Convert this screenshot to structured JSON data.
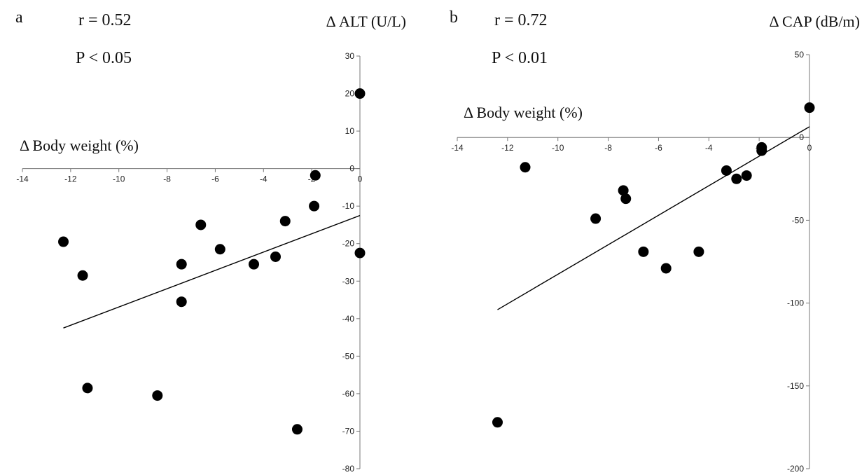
{
  "chart_data": [
    {
      "panel": "a",
      "type": "scatter",
      "stat_r": "r = 0.52",
      "stat_p": "P < 0.05",
      "xlabel": "Δ Body weight  (%)",
      "ylabel": "Δ ALT (U/L)",
      "xlim": [
        -14,
        0
      ],
      "ylim": [
        -80,
        30
      ],
      "x_ticks": [
        -14,
        -12,
        -10,
        -8,
        -6,
        -4,
        -2,
        0
      ],
      "y_ticks": [
        30,
        20,
        10,
        0,
        -10,
        -20,
        -30,
        -40,
        -50,
        -60,
        -70,
        -80
      ],
      "points": [
        {
          "x": -12.3,
          "y": -19.5
        },
        {
          "x": -11.5,
          "y": -28.5
        },
        {
          "x": -11.3,
          "y": -58.5
        },
        {
          "x": -8.4,
          "y": -60.5
        },
        {
          "x": -7.4,
          "y": -25.5
        },
        {
          "x": -7.4,
          "y": -35.5
        },
        {
          "x": -6.6,
          "y": -15.0
        },
        {
          "x": -5.8,
          "y": -21.5
        },
        {
          "x": -4.4,
          "y": -25.5
        },
        {
          "x": -3.5,
          "y": -23.5
        },
        {
          "x": -3.1,
          "y": -14.0
        },
        {
          "x": -2.6,
          "y": -69.5
        },
        {
          "x": -1.9,
          "y": -10.0
        },
        {
          "x": -1.85,
          "y": -1.8
        },
        {
          "x": 0.0,
          "y": 20.0
        },
        {
          "x": 0.0,
          "y": -22.5
        }
      ],
      "trendline": {
        "x": [
          -12.3,
          0
        ],
        "y": [
          -42.5,
          -12.5
        ]
      }
    },
    {
      "panel": "b",
      "type": "scatter",
      "stat_r": "r = 0.72",
      "stat_p": "P < 0.01",
      "xlabel": "Δ Body weight  (%)",
      "ylabel": "Δ CAP (dB/m)",
      "xlim": [
        -14,
        0
      ],
      "ylim": [
        -200,
        50
      ],
      "x_ticks": [
        -14,
        -12,
        -10,
        -8,
        -6,
        -4,
        -2,
        0
      ],
      "y_ticks": [
        50,
        0,
        -50,
        -100,
        -150,
        -200
      ],
      "points": [
        {
          "x": -12.4,
          "y": -172.0
        },
        {
          "x": -11.3,
          "y": -18.0
        },
        {
          "x": -8.5,
          "y": -49.0
        },
        {
          "x": -7.4,
          "y": -32.0
        },
        {
          "x": -7.3,
          "y": -37.0
        },
        {
          "x": -6.6,
          "y": -69.0
        },
        {
          "x": -5.7,
          "y": -79.0
        },
        {
          "x": -4.4,
          "y": -69.0
        },
        {
          "x": -3.3,
          "y": -20.0
        },
        {
          "x": -2.9,
          "y": -25.0
        },
        {
          "x": -2.5,
          "y": -23.0
        },
        {
          "x": -1.9,
          "y": -6.0
        },
        {
          "x": -1.9,
          "y": -8.0
        },
        {
          "x": 0.0,
          "y": 18.0
        }
      ],
      "trendline": {
        "x": [
          -12.4,
          0
        ],
        "y": [
          -104.0,
          6.5
        ]
      }
    }
  ]
}
